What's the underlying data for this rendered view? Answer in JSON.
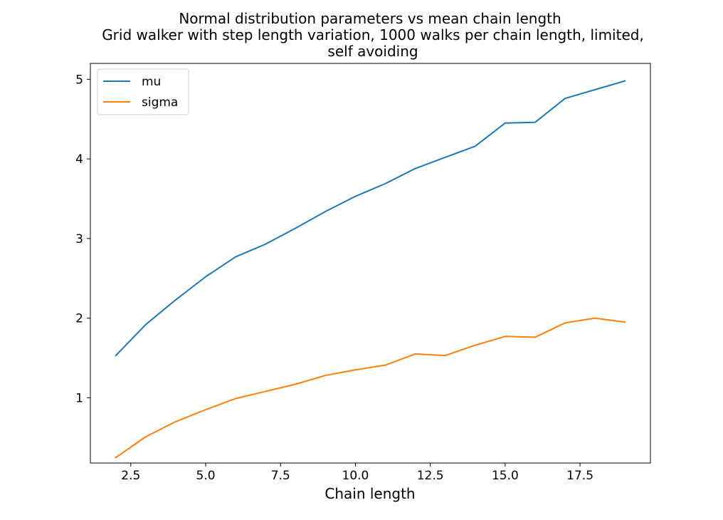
{
  "chart_data": {
    "type": "line",
    "title_lines": [
      "Normal distribution parameters vs mean chain length",
      "Grid walker with step length variation, 1000 walks per chain length, limited,",
      "self avoiding"
    ],
    "xlabel": "Chain length",
    "ylabel": "",
    "xlim": [
      1.15,
      19.85
    ],
    "ylim": [
      0.18,
      5.2
    ],
    "xticks": [
      2.5,
      5.0,
      7.5,
      10.0,
      12.5,
      15.0,
      17.5
    ],
    "xtick_labels": [
      "2.5",
      "5.0",
      "7.5",
      "10.0",
      "12.5",
      "15.0",
      "17.5"
    ],
    "yticks": [
      1,
      2,
      3,
      4,
      5
    ],
    "ytick_labels": [
      "1",
      "2",
      "3",
      "4",
      "5"
    ],
    "grid": false,
    "legend_position": "top-left",
    "x": [
      2,
      3,
      4,
      5,
      6,
      7,
      8,
      9,
      10,
      11,
      12,
      13,
      14,
      15,
      16,
      17,
      18,
      19
    ],
    "series": [
      {
        "name": "mu",
        "color": "#1f77b4",
        "values": [
          1.53,
          1.92,
          2.23,
          2.52,
          2.77,
          2.93,
          3.13,
          3.34,
          3.53,
          3.69,
          3.88,
          4.02,
          4.16,
          4.45,
          4.46,
          4.76,
          4.87,
          4.98
        ]
      },
      {
        "name": "sigma",
        "color": "#ff7f0e",
        "values": [
          0.25,
          0.51,
          0.7,
          0.85,
          0.99,
          1.08,
          1.17,
          1.28,
          1.35,
          1.41,
          1.55,
          1.53,
          1.66,
          1.77,
          1.76,
          1.94,
          2.0,
          1.95
        ]
      }
    ]
  }
}
